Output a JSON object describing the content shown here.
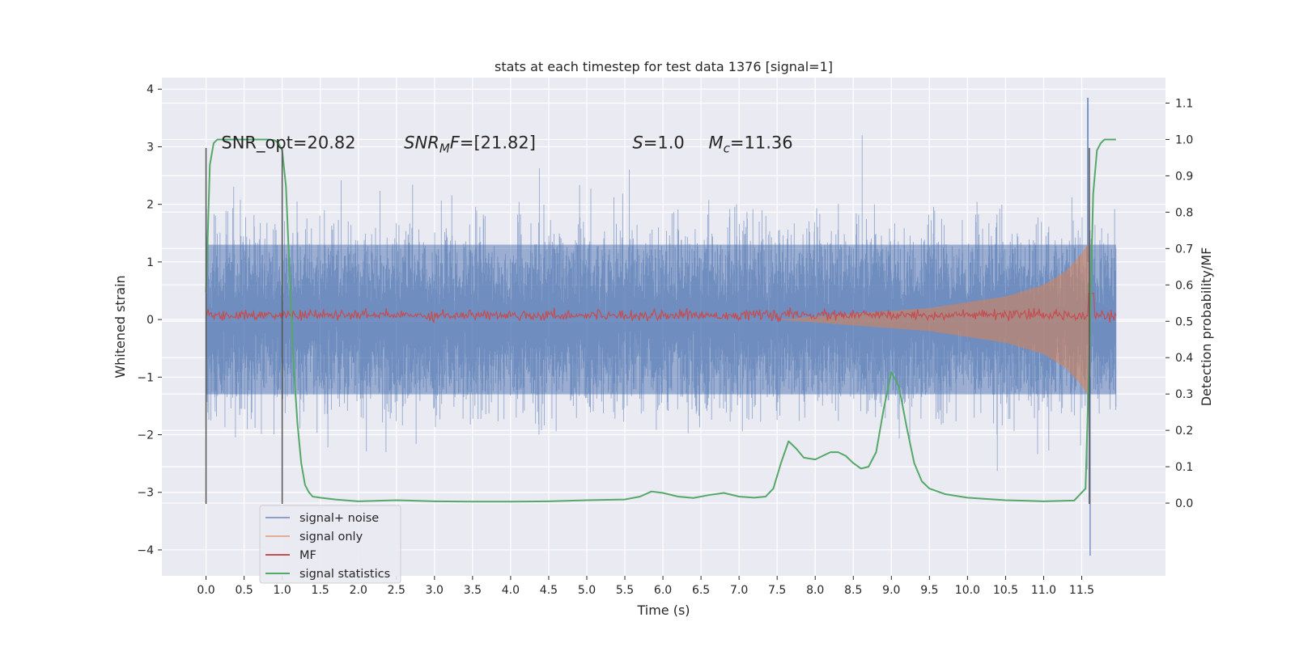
{
  "chart_data": {
    "type": "line",
    "title": "stats at each timestep for test data 1376 [signal=1]",
    "xlabel": "Time (s)",
    "ylabel": "Whitened strain",
    "ylabel_right": "Detection probability/MF",
    "xlim": [
      -0.58,
      12.6
    ],
    "ylim": [
      -4.45,
      4.2
    ],
    "ylim_right": [
      -0.2,
      1.17
    ],
    "x_ticks": [
      0.0,
      0.5,
      1.0,
      1.5,
      2.0,
      2.5,
      3.0,
      3.5,
      4.0,
      4.5,
      5.0,
      5.5,
      6.0,
      6.5,
      7.0,
      7.5,
      8.0,
      8.5,
      9.0,
      9.5,
      10.0,
      10.5,
      11.0,
      11.5
    ],
    "x_tick_labels": [
      "0.0",
      "0.5",
      "1.0",
      "1.5",
      "2.0",
      "2.5",
      "3.0",
      "3.5",
      "4.0",
      "4.5",
      "5.0",
      "5.5",
      "6.0",
      "6.5",
      "7.0",
      "7.5",
      "8.0",
      "8.5",
      "9.0",
      "9.5",
      "10.0",
      "10.5",
      "11.0",
      "11.5"
    ],
    "y_ticks": [
      -4,
      -3,
      -2,
      -1,
      0,
      1,
      2,
      3,
      4
    ],
    "y_tick_labels": [
      "−4",
      "−3",
      "−2",
      "−1",
      "0",
      "1",
      "2",
      "3",
      "4"
    ],
    "y_ticks_right": [
      0.0,
      0.1,
      0.2,
      0.3,
      0.4,
      0.5,
      0.6,
      0.7,
      0.8,
      0.9,
      1.0,
      1.1
    ],
    "y_tick_labels_right": [
      "0.0",
      "0.1",
      "0.2",
      "0.3",
      "0.4",
      "0.5",
      "0.6",
      "0.7",
      "0.8",
      "0.9",
      "1.0",
      "1.1"
    ],
    "grid": true,
    "background": "#eaeaf2",
    "legend_position": "lower-left",
    "series": [
      {
        "name": "signal+ noise",
        "color": "#4c72b0",
        "axis": "left",
        "x_range": [
          0.0,
          11.95
        ],
        "typical_band": [
          -1.3,
          1.3
        ],
        "extreme_range": [
          -4.1,
          3.85
        ]
      },
      {
        "name": "signal only",
        "color": "#dd8452",
        "axis": "left",
        "x_range": [
          7.5,
          11.95
        ],
        "envelope": [
          [
            7.5,
            0.0
          ],
          [
            8.5,
            0.1
          ],
          [
            9.5,
            0.2
          ],
          [
            10.5,
            0.4
          ],
          [
            11.0,
            0.6
          ],
          [
            11.3,
            0.85
          ],
          [
            11.5,
            1.15
          ],
          [
            11.6,
            1.35
          ],
          [
            11.62,
            0.0
          ]
        ]
      },
      {
        "name": "MF",
        "color": "#c44e52",
        "axis": "right",
        "x_range": [
          0.0,
          11.95
        ],
        "level": 0.517,
        "jitter": 0.007
      },
      {
        "name": "signal statistics",
        "color": "#55a868",
        "axis": "right",
        "x": [
          0.0,
          0.05,
          0.1,
          0.15,
          0.2,
          0.3,
          0.5,
          0.7,
          0.8,
          0.9,
          0.95,
          1.0,
          1.05,
          1.1,
          1.15,
          1.2,
          1.25,
          1.3,
          1.35,
          1.4,
          1.5,
          1.7,
          2.0,
          2.5,
          3.0,
          3.5,
          4.0,
          4.5,
          5.0,
          5.5,
          5.7,
          5.85,
          6.0,
          6.2,
          6.4,
          6.6,
          6.8,
          7.0,
          7.2,
          7.35,
          7.45,
          7.55,
          7.65,
          7.75,
          7.85,
          8.0,
          8.1,
          8.2,
          8.3,
          8.4,
          8.5,
          8.6,
          8.7,
          8.8,
          8.9,
          9.0,
          9.1,
          9.2,
          9.3,
          9.4,
          9.5,
          9.7,
          10.0,
          10.5,
          11.0,
          11.4,
          11.55,
          11.6,
          11.65,
          11.7,
          11.75,
          11.8,
          11.85,
          11.95
        ],
        "values": [
          0.58,
          0.93,
          0.99,
          1.0,
          1.0,
          1.0,
          1.0,
          1.0,
          1.0,
          0.998,
          0.99,
          0.97,
          0.87,
          0.62,
          0.38,
          0.22,
          0.11,
          0.05,
          0.03,
          0.018,
          0.015,
          0.01,
          0.005,
          0.008,
          0.005,
          0.004,
          0.004,
          0.005,
          0.008,
          0.01,
          0.018,
          0.032,
          0.028,
          0.018,
          0.014,
          0.022,
          0.028,
          0.018,
          0.015,
          0.018,
          0.04,
          0.11,
          0.17,
          0.15,
          0.125,
          0.12,
          0.13,
          0.14,
          0.14,
          0.13,
          0.11,
          0.095,
          0.1,
          0.14,
          0.26,
          0.36,
          0.32,
          0.21,
          0.11,
          0.06,
          0.04,
          0.025,
          0.015,
          0.008,
          0.005,
          0.007,
          0.04,
          0.4,
          0.85,
          0.97,
          0.99,
          1.0,
          1.0,
          1.0
        ]
      }
    ],
    "vertical_markers": [
      {
        "x": 0.0,
        "y_range": [
          -3.2,
          2.98
        ],
        "color": "#555555"
      },
      {
        "x": 1.0,
        "y_range": [
          -3.2,
          2.98
        ],
        "color": "#555555"
      },
      {
        "x": 11.6,
        "y_range": [
          -3.2,
          2.98
        ],
        "color": "#555555"
      }
    ],
    "annotations": [
      {
        "text": "SNR_opt=20.82",
        "x": 0.2,
        "y": 3.0
      },
      {
        "text": "SNR",
        "sub": "M",
        "rest": "F=[21.82]",
        "italic": true,
        "x": 2.6,
        "y": 3.0
      },
      {
        "text": "S",
        "rest": "=1.0",
        "italic": true,
        "x": 5.6,
        "y": 3.0
      },
      {
        "text": "M",
        "sub": "c",
        "rest": "=11.36",
        "italic": true,
        "x": 6.6,
        "y": 3.0
      }
    ]
  }
}
